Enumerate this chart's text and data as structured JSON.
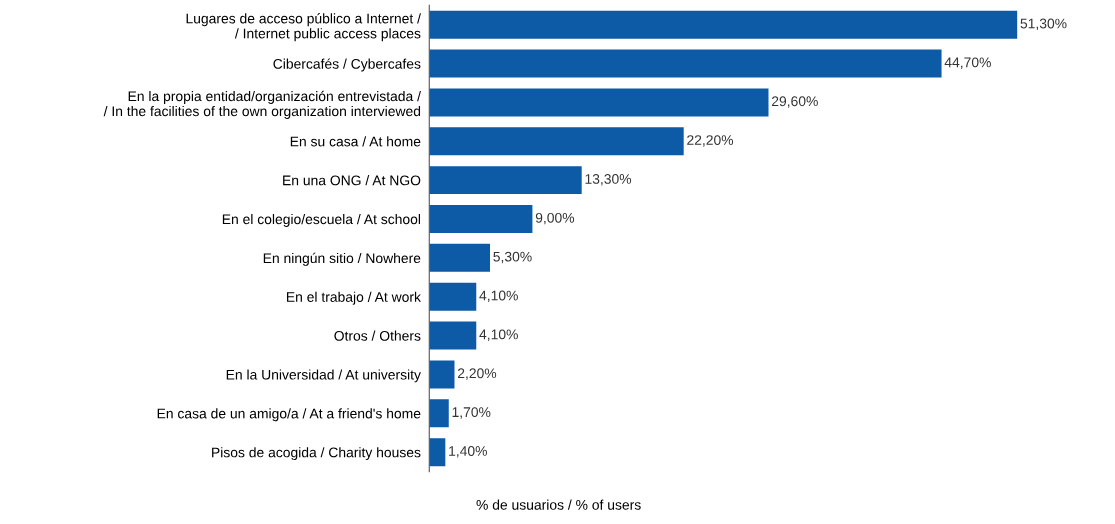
{
  "chart_data": {
    "type": "bar",
    "orientation": "horizontal",
    "xlabel": "% de usuarios / % of users",
    "categories": [
      "Lugares de acceso público a Internet /\n/ Internet public access places",
      "Cibercafés / Cybercafes",
      "En la propia entidad/organización entrevistada /\n/ In the facilities of the own organization interviewed",
      "En su casa / At home",
      "En una ONG / At NGO",
      "En el colegio/escuela / At school",
      "En ningún sitio / Nowhere",
      "En el trabajo / At work",
      "Otros / Others",
      "En la Universidad / At university",
      "En casa de un amigo/a / At a friend's home",
      "Pisos de acogida / Charity houses"
    ],
    "values": [
      51.3,
      44.7,
      29.6,
      22.2,
      13.3,
      9.0,
      5.3,
      4.1,
      4.1,
      2.2,
      1.7,
      1.4
    ],
    "value_labels": [
      "51,30%",
      "44,70%",
      "29,60%",
      "22,20%",
      "13,30%",
      "9,00%",
      "5,30%",
      "4,10%",
      "4,10%",
      "2,20%",
      "1,70%",
      "1,40%"
    ],
    "color": "#0d5aa7",
    "grid": false,
    "legend": false
  }
}
